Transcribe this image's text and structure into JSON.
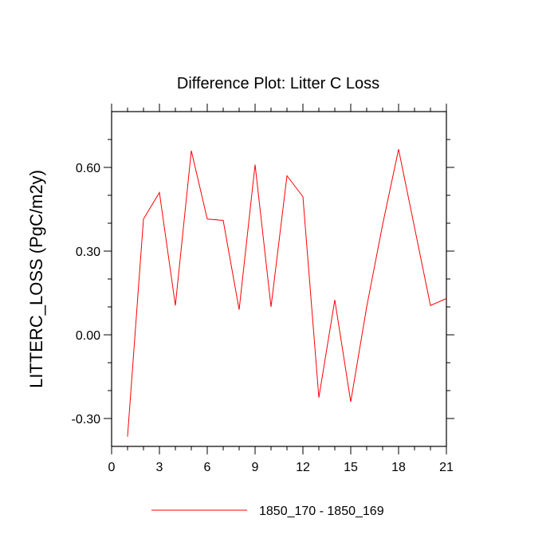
{
  "chart_data": {
    "type": "line",
    "title": "Difference Plot: Litter C Loss",
    "xlabel": "",
    "ylabel": "LITTERC_LOSS  (PgC/m2y)",
    "xlim": [
      0,
      21
    ],
    "ylim": [
      -0.4,
      0.8
    ],
    "x_ticks": [
      0,
      3,
      6,
      9,
      12,
      15,
      18,
      21
    ],
    "x_tick_labels": [
      "0",
      "3",
      "6",
      "9",
      "12",
      "15",
      "18",
      "21"
    ],
    "y_ticks": [
      -0.3,
      0.0,
      0.3,
      0.6
    ],
    "y_tick_labels": [
      "-0.30",
      "0.00",
      "0.30",
      "0.60"
    ],
    "grid": false,
    "legend_position": "bottom",
    "series": [
      {
        "name": "1850_170 - 1850_169",
        "color": "#ff0000",
        "x": [
          1,
          2,
          3,
          4,
          5,
          6,
          7,
          8,
          9,
          10,
          11,
          12,
          13,
          14,
          15,
          16,
          17,
          18,
          19,
          20,
          21
        ],
        "y": [
          -0.365,
          0.415,
          0.51,
          0.105,
          0.66,
          0.415,
          0.41,
          0.09,
          0.61,
          0.1,
          0.57,
          0.495,
          -0.225,
          0.125,
          -0.24,
          0.1,
          0.395,
          0.665,
          0.385,
          0.105,
          0.13
        ]
      }
    ]
  }
}
